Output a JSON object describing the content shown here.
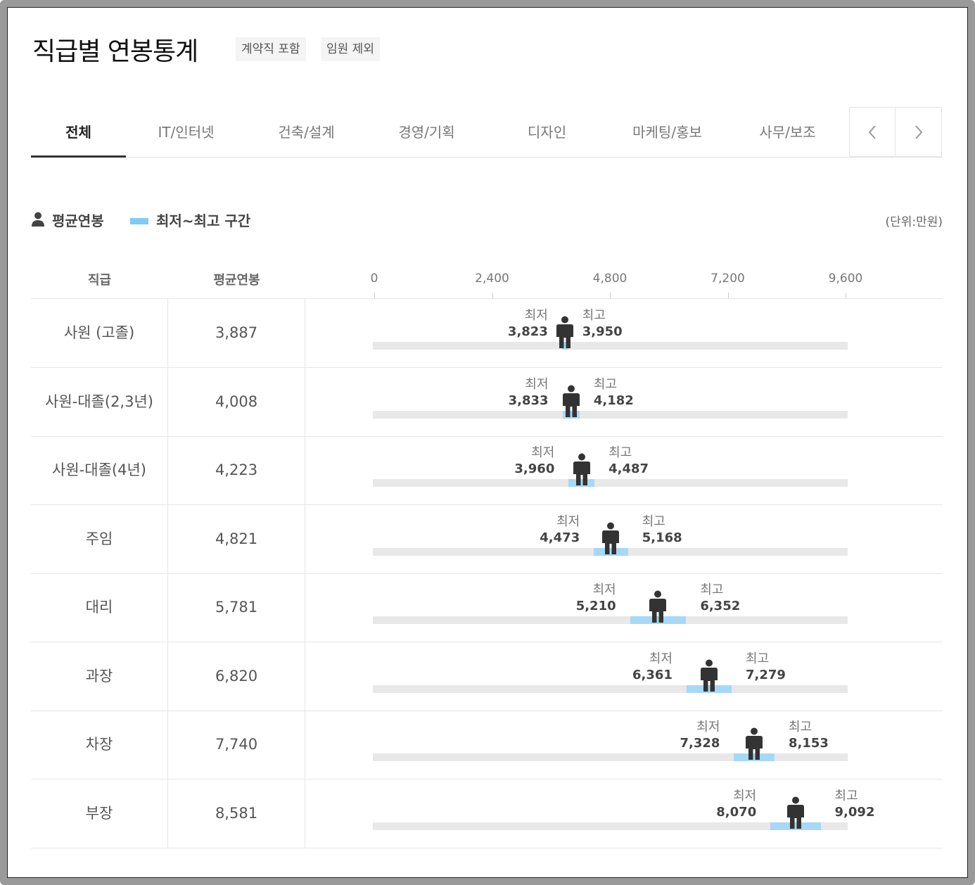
{
  "header": {
    "title": "직급별 연봉통계",
    "badges": [
      "계약직 포함",
      "임원 제외"
    ]
  },
  "tabs": [
    "전체",
    "IT/인터넷",
    "건축/설계",
    "경영/기획",
    "디자인",
    "마케팅/홍보",
    "사무/보조"
  ],
  "active_tab": "전체",
  "tab_nav": {
    "prev": "chevron-left-icon",
    "next": "chevron-right-icon"
  },
  "legend": {
    "avg_label": "평균연봉",
    "range_label": "최저~최고 구간",
    "unit": "(단위:만원)"
  },
  "colors": {
    "range": "#a6d8f7",
    "track": "#e8e8e8",
    "person": "#333333",
    "legend_swatch": "#7ecbf5"
  },
  "table": {
    "col_grade": "직급",
    "col_avg": "평균연봉",
    "min_label": "최저",
    "max_label": "최고"
  },
  "chart_data": {
    "type": "range",
    "axis_ticks": [
      "0",
      "2,400",
      "4,800",
      "7,200",
      "9,600"
    ],
    "xlim": [
      0,
      9600
    ],
    "rows": [
      {
        "grade": "사원 (고졸)",
        "avg": 3887,
        "avg_text": "3,887",
        "min": 3823,
        "min_text": "3,823",
        "max": 3950,
        "max_text": "3,950"
      },
      {
        "grade": "사원-대졸(2,3년)",
        "avg": 4008,
        "avg_text": "4,008",
        "min": 3833,
        "min_text": "3,833",
        "max": 4182,
        "max_text": "4,182"
      },
      {
        "grade": "사원-대졸(4년)",
        "avg": 4223,
        "avg_text": "4,223",
        "min": 3960,
        "min_text": "3,960",
        "max": 4487,
        "max_text": "4,487"
      },
      {
        "grade": "주임",
        "avg": 4821,
        "avg_text": "4,821",
        "min": 4473,
        "min_text": "4,473",
        "max": 5168,
        "max_text": "5,168"
      },
      {
        "grade": "대리",
        "avg": 5781,
        "avg_text": "5,781",
        "min": 5210,
        "min_text": "5,210",
        "max": 6352,
        "max_text": "6,352"
      },
      {
        "grade": "과장",
        "avg": 6820,
        "avg_text": "6,820",
        "min": 6361,
        "min_text": "6,361",
        "max": 7279,
        "max_text": "7,279"
      },
      {
        "grade": "차장",
        "avg": 7740,
        "avg_text": "7,740",
        "min": 7328,
        "min_text": "7,328",
        "max": 8153,
        "max_text": "8,153"
      },
      {
        "grade": "부장",
        "avg": 8581,
        "avg_text": "8,581",
        "min": 8070,
        "min_text": "8,070",
        "max": 9092,
        "max_text": "9,092"
      }
    ]
  }
}
